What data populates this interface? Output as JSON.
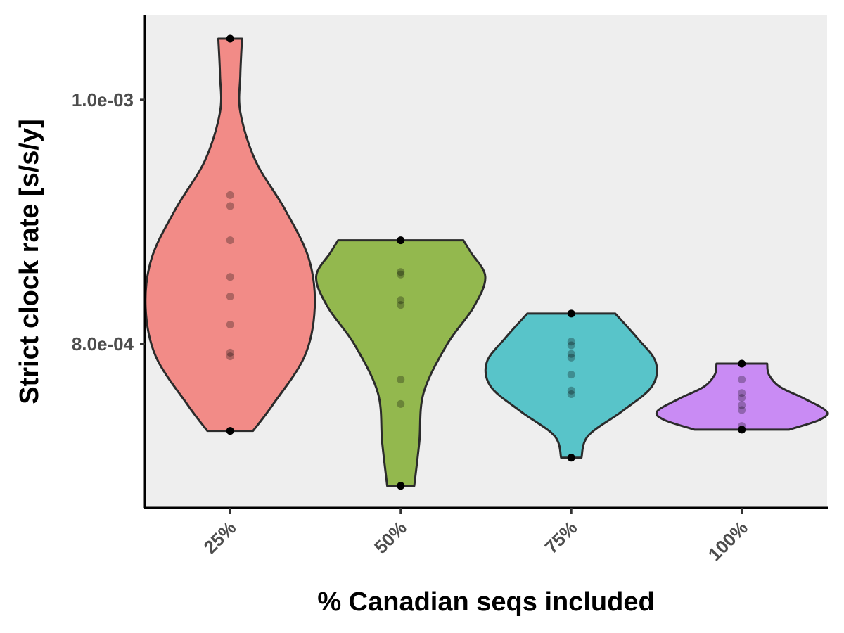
{
  "chart_data": {
    "type": "violin",
    "xlabel": "% Canadian seqs included",
    "ylabel": "Strict clock rate [s/s/y]",
    "yticks": [
      {
        "value": 0.0008,
        "label": "8.0e-04"
      },
      {
        "value": 0.001,
        "label": "1.0e-03"
      }
    ],
    "ylim": [
      0.000666,
      0.001069
    ],
    "grid": false,
    "legend": "none",
    "categories": [
      "25%",
      "50%",
      "75%",
      "100%"
    ],
    "series": [
      {
        "category": "25%",
        "color": "#F28B87",
        "points": [
          0.00105,
          0.000922,
          0.000913,
          0.000885,
          0.000855,
          0.000839,
          0.000816,
          0.000793,
          0.00079,
          0.000729
        ],
        "violin_profile": [
          [
            0.000729,
            0.27
          ],
          [
            0.00075,
            0.5
          ],
          [
            0.00079,
            0.88
          ],
          [
            0.00083,
            1.0
          ],
          [
            0.00087,
            0.93
          ],
          [
            0.00091,
            0.65
          ],
          [
            0.00095,
            0.3
          ],
          [
            0.00099,
            0.12
          ],
          [
            0.00102,
            0.12
          ],
          [
            0.00105,
            0.14
          ]
        ]
      },
      {
        "category": "50%",
        "color": "#93B84E",
        "points": [
          0.000885,
          0.000859,
          0.000857,
          0.000836,
          0.000832,
          0.000771,
          0.000751,
          0.000684
        ],
        "violin_profile": [
          [
            0.000684,
            0.16
          ],
          [
            0.00072,
            0.22
          ],
          [
            0.00076,
            0.27
          ],
          [
            0.0008,
            0.55
          ],
          [
            0.00083,
            0.86
          ],
          [
            0.000855,
            1.0
          ],
          [
            0.000875,
            0.83
          ],
          [
            0.000885,
            0.74
          ]
        ]
      },
      {
        "category": "75%",
        "color": "#58C4C9",
        "points": [
          0.000825,
          0.000802,
          0.000799,
          0.000792,
          0.000789,
          0.000775,
          0.000762,
          0.000759,
          0.000707
        ],
        "violin_profile": [
          [
            0.000707,
            0.12
          ],
          [
            0.000725,
            0.2
          ],
          [
            0.000745,
            0.6
          ],
          [
            0.000765,
            0.95
          ],
          [
            0.000785,
            1.0
          ],
          [
            0.000805,
            0.78
          ],
          [
            0.000825,
            0.52
          ]
        ]
      },
      {
        "category": "100%",
        "color": "#C98BF4",
        "points": [
          0.000784,
          0.000771,
          0.00076,
          0.000756,
          0.00075,
          0.000746,
          0.000733,
          0.00073
        ],
        "violin_profile": [
          [
            0.00073,
            0.56
          ],
          [
            0.000738,
            0.92
          ],
          [
            0.000745,
            1.0
          ],
          [
            0.000755,
            0.75
          ],
          [
            0.000765,
            0.45
          ],
          [
            0.000775,
            0.32
          ],
          [
            0.000784,
            0.3
          ]
        ]
      }
    ]
  }
}
